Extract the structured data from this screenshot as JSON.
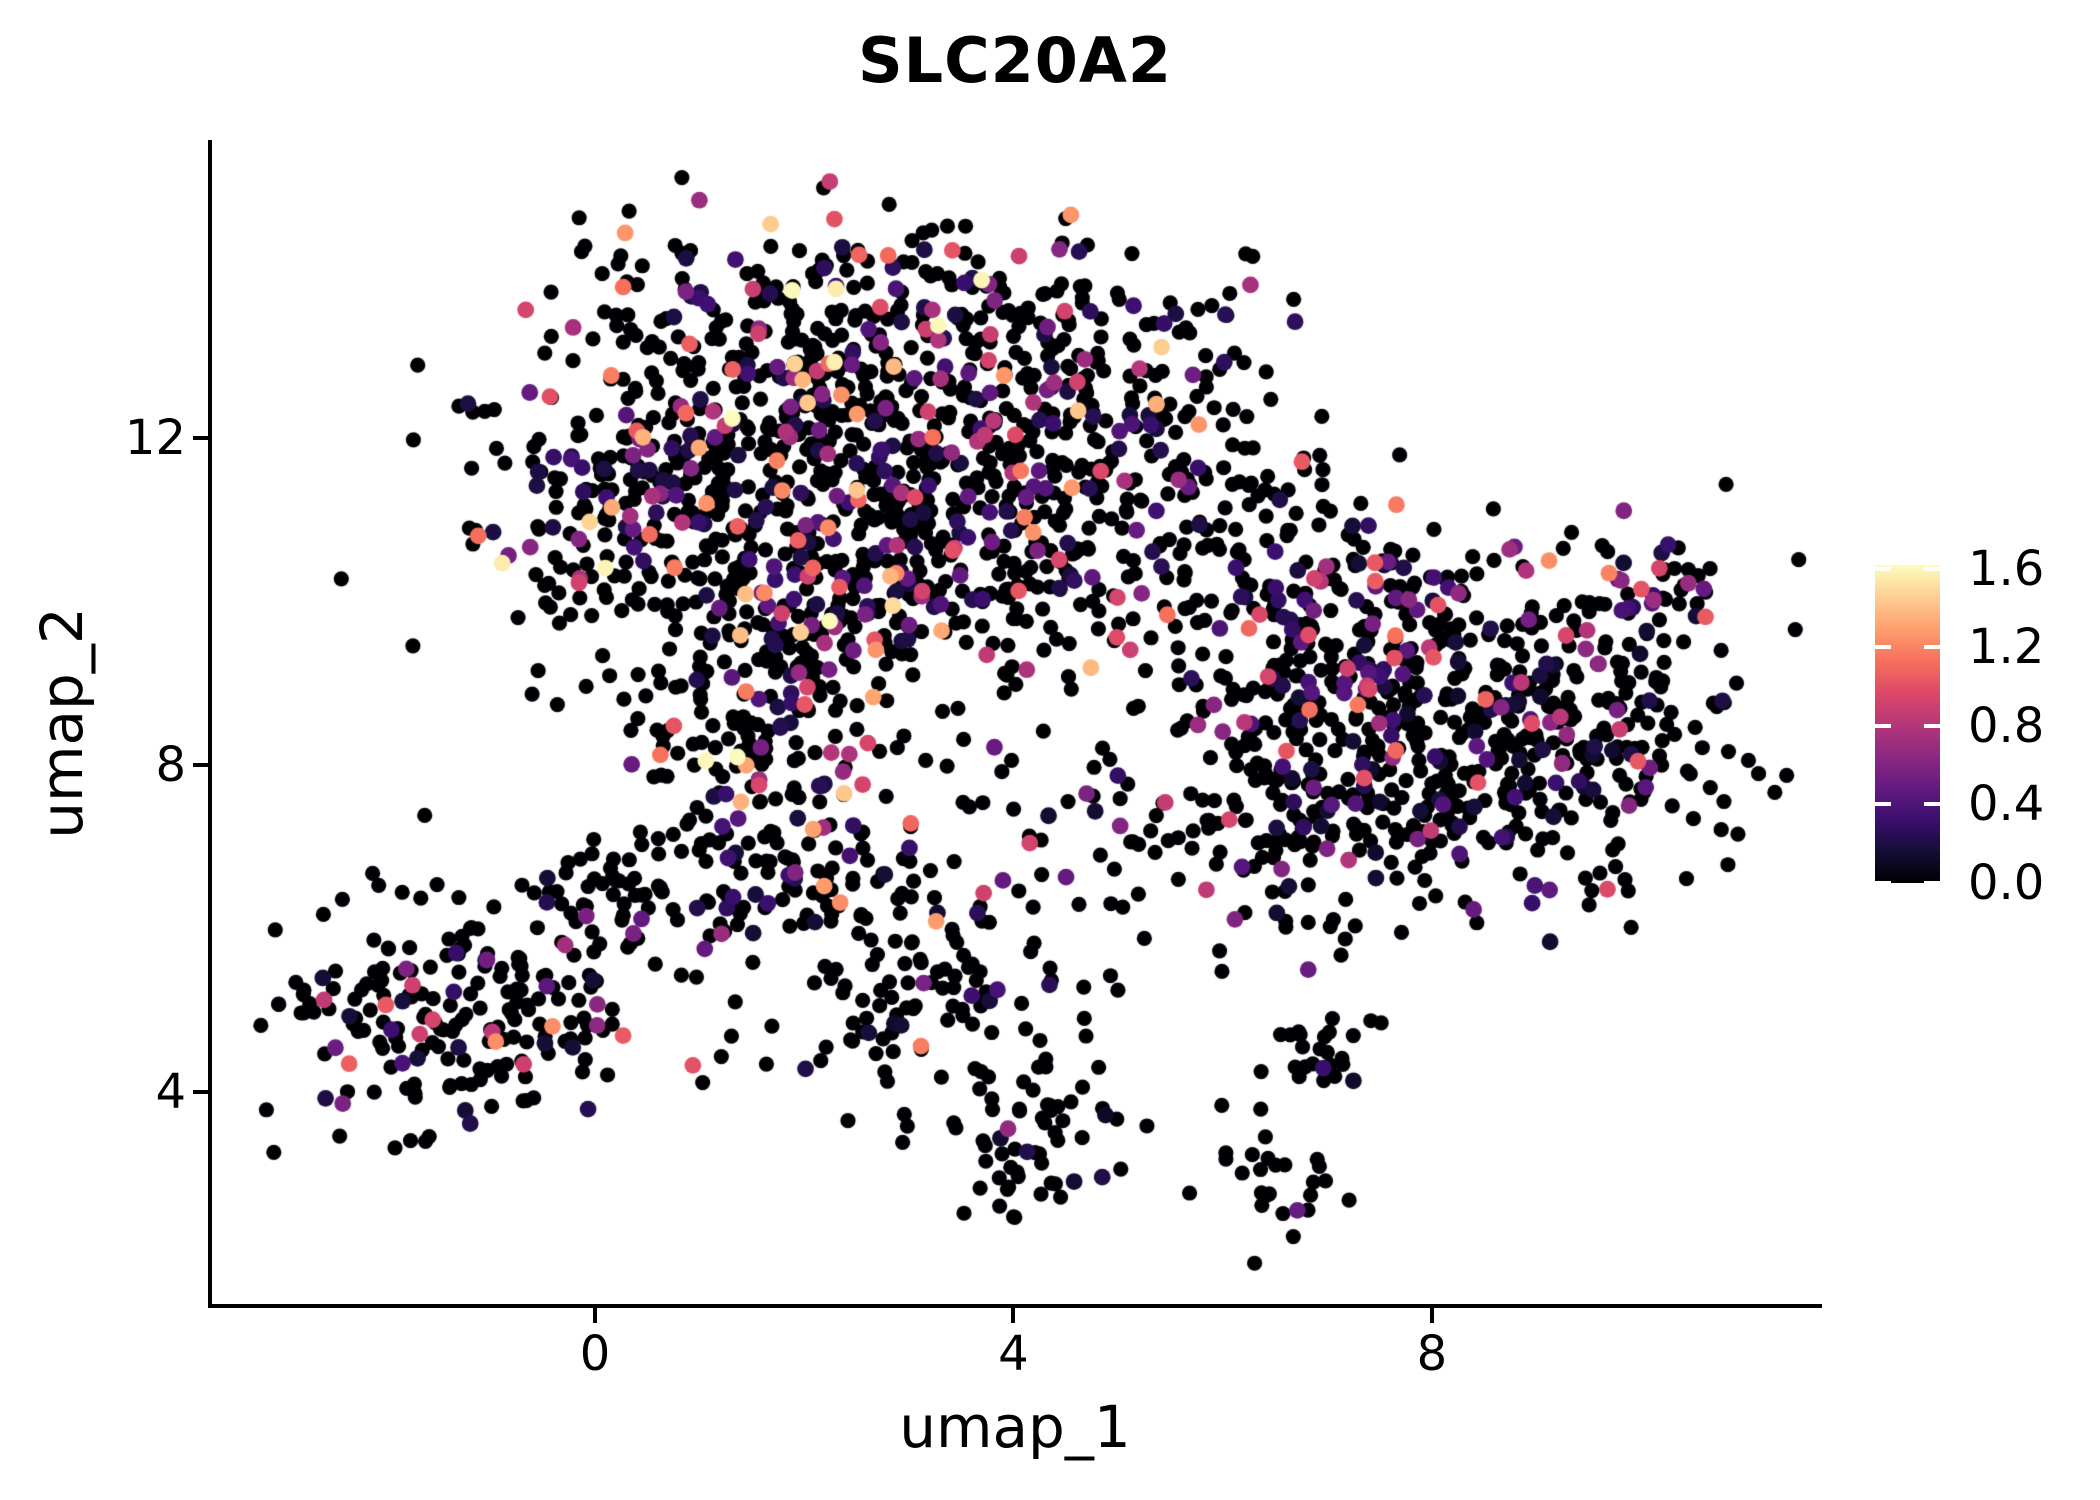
{
  "title": "SLC20A2",
  "axes": {
    "x": {
      "label": "umap_1",
      "tick_values": [
        0,
        4,
        8
      ]
    },
    "y": {
      "label": "umap_2",
      "tick_values": [
        4,
        8,
        12
      ]
    }
  },
  "legend": {
    "ticks": [
      {
        "label": "1.6",
        "value": 1.6
      },
      {
        "label": "1.2",
        "value": 1.2
      },
      {
        "label": "0.8",
        "value": 0.8
      },
      {
        "label": "0.4",
        "value": 0.4
      },
      {
        "label": "0.0",
        "value": 0.0
      }
    ]
  },
  "chart_data": {
    "type": "scatter",
    "title": "SLC20A2",
    "xlabel": "umap_1",
    "ylabel": "umap_2",
    "x_ticks": [
      0,
      4,
      8
    ],
    "y_ticks": [
      4,
      8,
      12
    ],
    "xlim": [
      -3.68,
      11.71
    ],
    "ylim": [
      1.38,
      15.65
    ],
    "grid": false,
    "legend_position": "right",
    "point_color_meaning": "SLC20A2 expression level",
    "color_scale": {
      "name": "magma",
      "domain": [
        0,
        1.62
      ],
      "legend_ticks": [
        0.0,
        0.4,
        0.8,
        1.2,
        1.6
      ],
      "stops": [
        [
          0.0,
          "#000004"
        ],
        [
          0.1,
          "#140e36"
        ],
        [
          0.2,
          "#3b0f70"
        ],
        [
          0.3,
          "#641a80"
        ],
        [
          0.4,
          "#8c2981"
        ],
        [
          0.5,
          "#b73779"
        ],
        [
          0.6,
          "#de4968"
        ],
        [
          0.7,
          "#f7705c"
        ],
        [
          0.8,
          "#fe9f6d"
        ],
        [
          0.9,
          "#fecf92"
        ],
        [
          1.0,
          "#fcfdbf"
        ]
      ]
    },
    "points_encoding": "gaussian-clusters",
    "seed": 7,
    "clusters": [
      {
        "cx": 2.2,
        "cy": 13.4,
        "sx": 1.25,
        "sy": 0.72,
        "n": 280,
        "expr_frac": 0.26,
        "vmax": 1.62
      },
      {
        "cx": 0.9,
        "cy": 11.2,
        "sx": 1.05,
        "sy": 0.95,
        "n": 330,
        "expr_frac": 0.25,
        "vmax": 1.62
      },
      {
        "cx": 3.2,
        "cy": 11.4,
        "sx": 1.15,
        "sy": 1.05,
        "n": 380,
        "expr_frac": 0.24,
        "vmax": 1.5
      },
      {
        "cx": 4.7,
        "cy": 12.4,
        "sx": 0.85,
        "sy": 0.95,
        "n": 190,
        "expr_frac": 0.27,
        "vmax": 1.45
      },
      {
        "cx": 2.3,
        "cy": 9.8,
        "sx": 0.95,
        "sy": 0.62,
        "n": 140,
        "expr_frac": 0.22,
        "vmax": 1.5
      },
      {
        "cx": 7.5,
        "cy": 9.5,
        "sx": 1.15,
        "sy": 0.95,
        "n": 300,
        "expr_frac": 0.28,
        "vmax": 1.25
      },
      {
        "cx": 8.9,
        "cy": 8.2,
        "sx": 1.15,
        "sy": 0.85,
        "n": 330,
        "expr_frac": 0.26,
        "vmax": 1.1
      },
      {
        "cx": 6.9,
        "cy": 7.5,
        "sx": 0.85,
        "sy": 0.8,
        "n": 150,
        "expr_frac": 0.24,
        "vmax": 1.2
      },
      {
        "cx": 5.9,
        "cy": 10.5,
        "sx": 0.8,
        "sy": 0.75,
        "n": 80,
        "expr_frac": 0.2,
        "vmax": 1.3
      },
      {
        "cx": 10.1,
        "cy": 10.1,
        "sx": 0.42,
        "sy": 0.33,
        "n": 38,
        "expr_frac": 0.3,
        "vmax": 1.2
      },
      {
        "cx": 1.6,
        "cy": 8.2,
        "sx": 0.7,
        "sy": 0.95,
        "n": 150,
        "expr_frac": 0.24,
        "vmax": 1.62
      },
      {
        "cx": 1.5,
        "cy": 6.6,
        "sx": 0.5,
        "sy": 0.45,
        "n": 45,
        "expr_frac": 0.2,
        "vmax": 1.3
      },
      {
        "cx": -1.2,
        "cy": 5.0,
        "sx": 1.0,
        "sy": 0.72,
        "n": 210,
        "expr_frac": 0.16,
        "vmax": 1.3
      },
      {
        "cx": 0.3,
        "cy": 6.3,
        "sx": 0.5,
        "sy": 0.4,
        "n": 55,
        "expr_frac": 0.2,
        "vmax": 1.3
      },
      {
        "cx": 2.9,
        "cy": 5.7,
        "sx": 0.65,
        "sy": 1.0,
        "n": 110,
        "expr_frac": 0.15,
        "vmax": 1.3
      },
      {
        "cx": 4.15,
        "cy": 3.4,
        "sx": 0.42,
        "sy": 0.5,
        "n": 55,
        "expr_frac": 0.12,
        "vmax": 0.9
      },
      {
        "cx": 6.9,
        "cy": 4.5,
        "sx": 0.33,
        "sy": 0.28,
        "n": 24,
        "expr_frac": 0.1,
        "vmax": 0.9
      },
      {
        "cx": 6.55,
        "cy": 2.95,
        "sx": 0.28,
        "sy": 0.42,
        "n": 28,
        "expr_frac": 0.1,
        "vmax": 0.9
      },
      {
        "cx": 4.8,
        "cy": 7.6,
        "sx": 1.2,
        "sy": 1.15,
        "n": 55,
        "expr_frac": 0.18,
        "vmax": 1.2
      },
      {
        "cx": 3.6,
        "cy": 4.9,
        "sx": 0.5,
        "sy": 0.5,
        "n": 30,
        "expr_frac": 0.15,
        "vmax": 1.0
      }
    ]
  }
}
